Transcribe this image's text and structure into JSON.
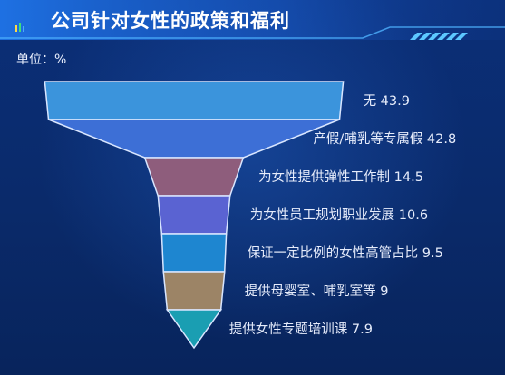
{
  "header": {
    "title": "公司针对女性的政策和福利",
    "unit": "单位：%"
  },
  "chart_data": {
    "type": "funnel",
    "title": "公司针对女性的政策和福利",
    "unit": "%",
    "categories": [
      "无",
      "产假/哺乳等专属假",
      "为女性提供弹性工作制",
      "为女性员工规划职业发展",
      "保证一定比例的女性高管占比",
      "提供母婴室、哺乳室等",
      "提供女性专题培训课"
    ],
    "values": [
      43.9,
      42.8,
      14.5,
      10.6,
      9.5,
      9,
      7.9
    ],
    "labels": [
      "无 43.9",
      "产假/哺乳等专属假 42.8",
      "为女性提供弹性工作制 14.5",
      "为女性员工规划职业发展 10.6",
      "保证一定比例的女性高管占比 9.5",
      "提供母婴室、哺乳室等 9",
      "提供女性专题培训课 7.9"
    ],
    "colors": [
      "#3b94dc",
      "#3d6fd6",
      "#8e5d7c",
      "#5a63d2",
      "#1e86d0",
      "#9c8466",
      "#1a9eb2"
    ]
  }
}
